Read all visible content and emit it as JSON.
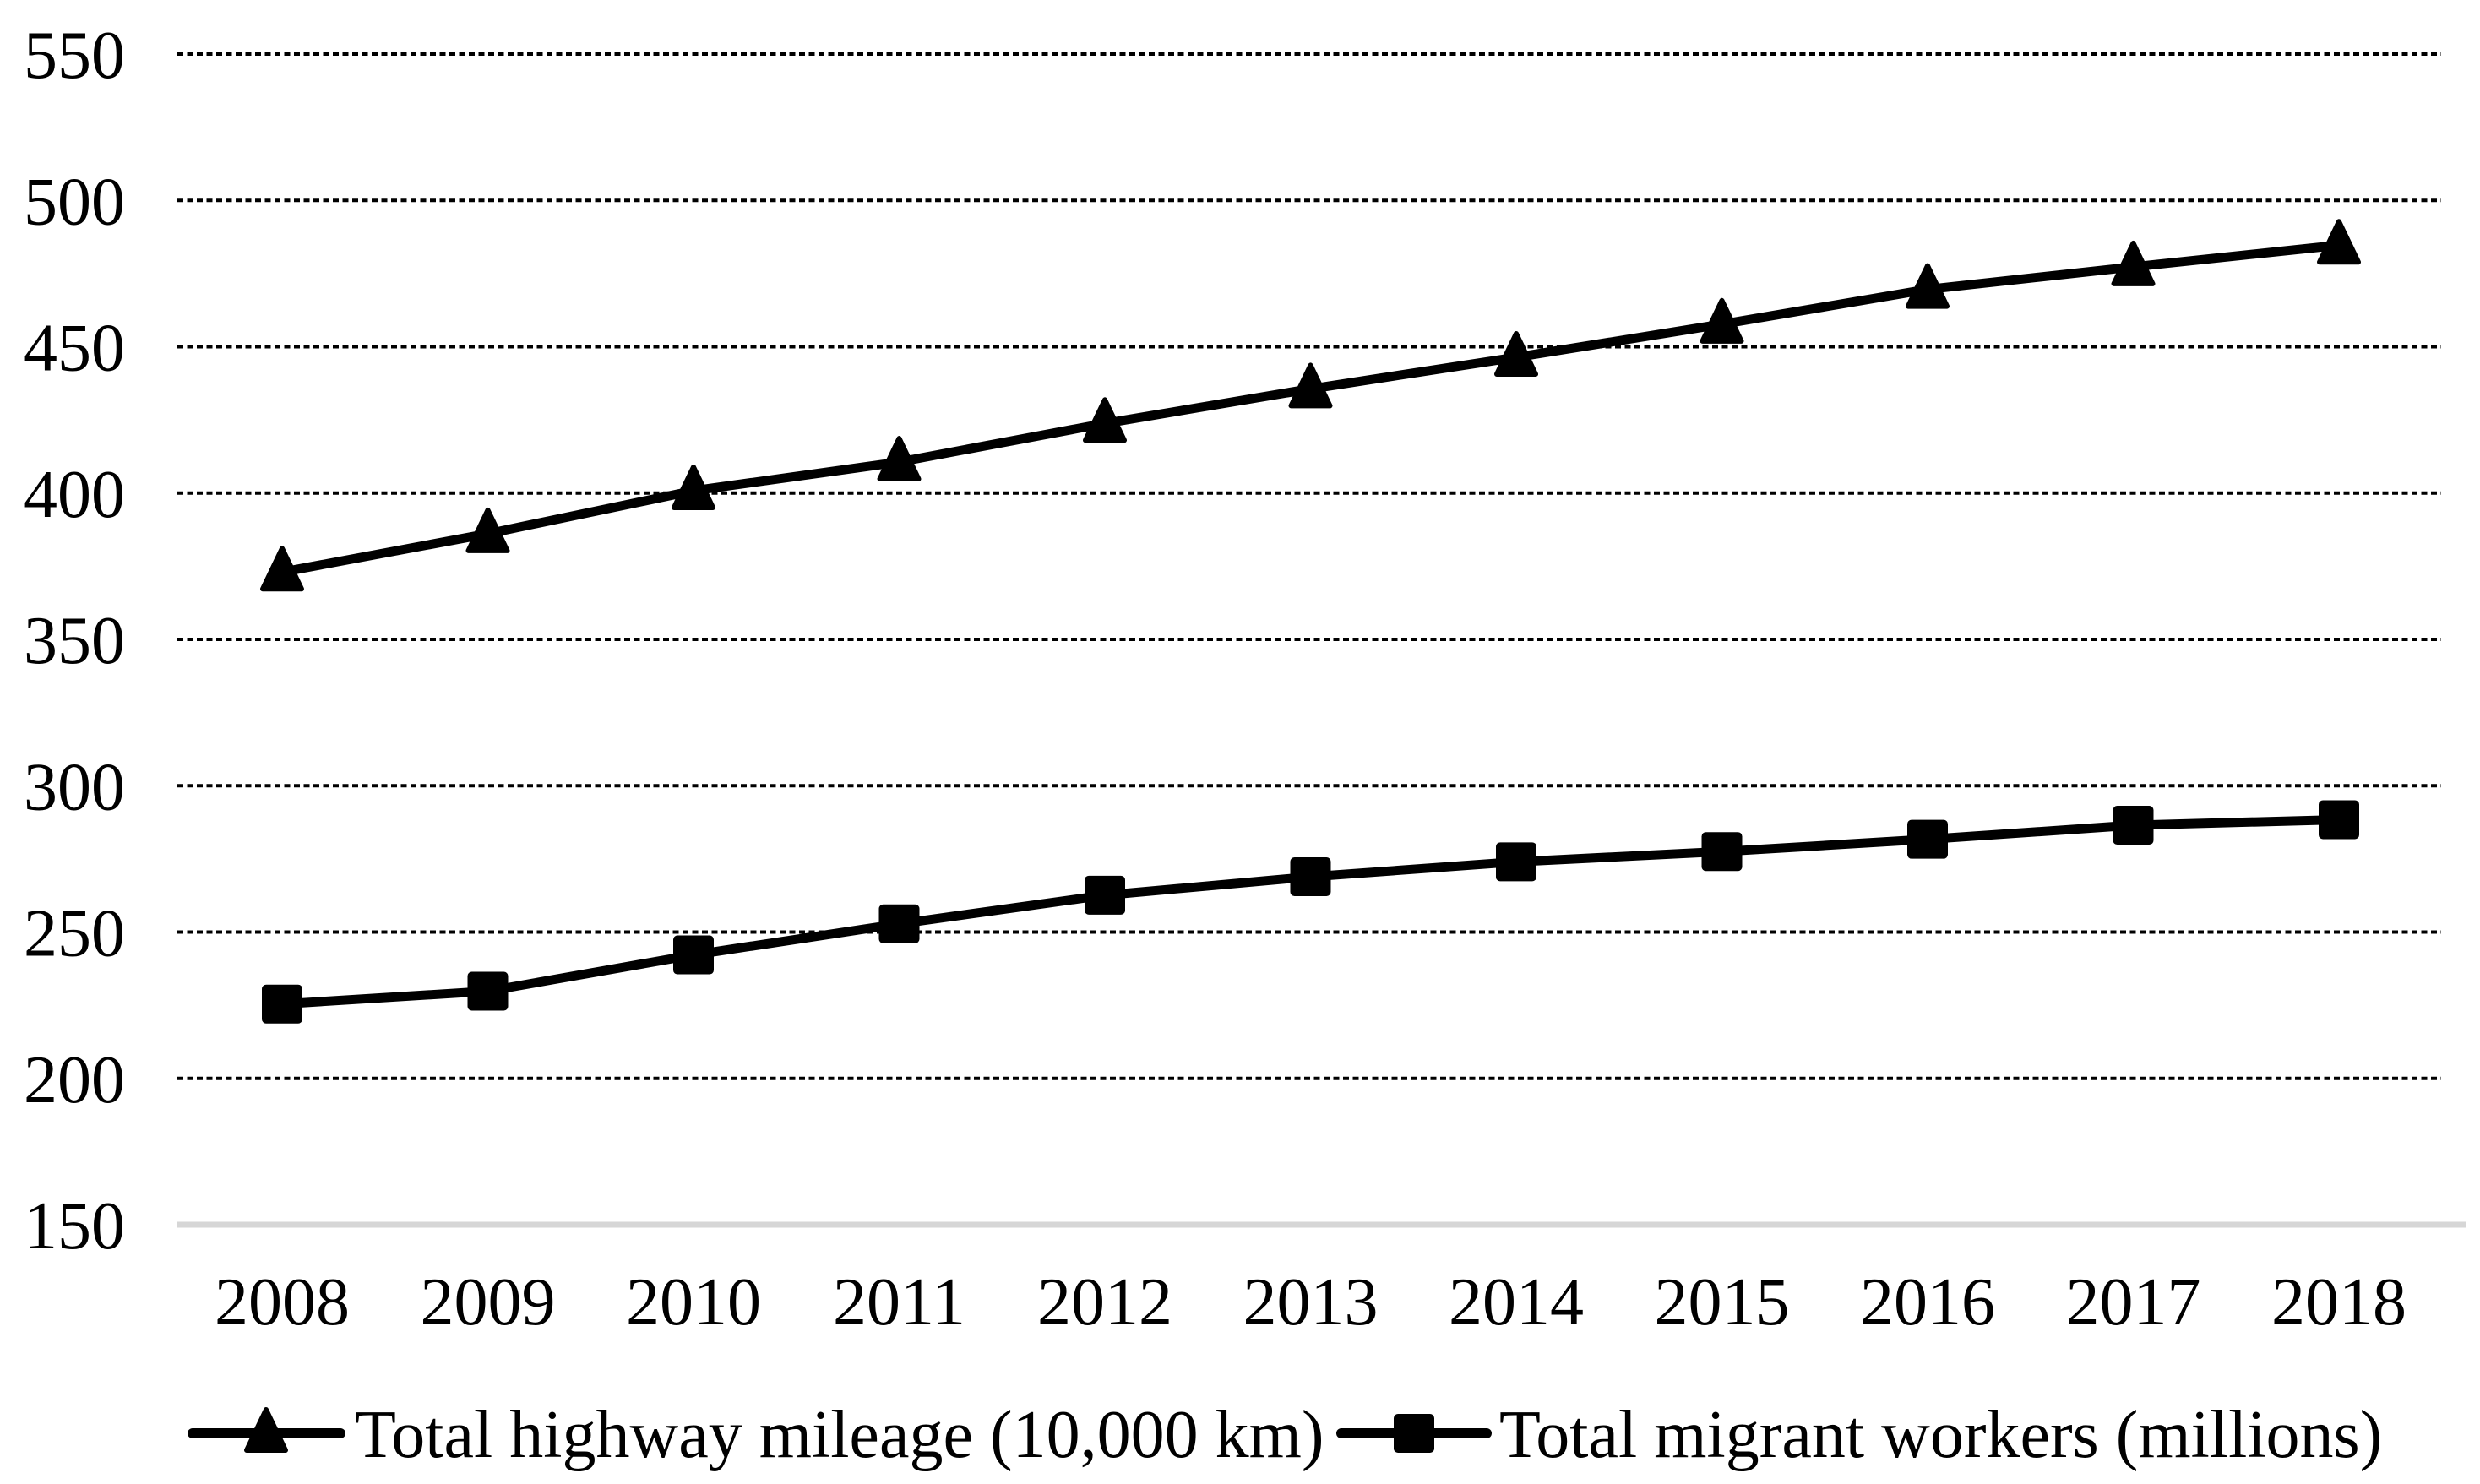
{
  "chart_data": {
    "type": "line",
    "title": "",
    "categories": [
      "2008",
      "2009",
      "2010",
      "2011",
      "2012",
      "2013",
      "2014",
      "2015",
      "2016",
      "2017",
      "2018"
    ],
    "series": [
      {
        "name": "Total highway mileage (10,000 km)",
        "marker": "triangle",
        "color": "#000000",
        "values": [
          373.0,
          386.1,
          400.8,
          410.6,
          423.8,
          435.6,
          446.4,
          457.7,
          469.6,
          477.3,
          484.7
        ]
      },
      {
        "name": "Total migrant workers (millions)",
        "marker": "square",
        "color": "#000000",
        "values": [
          225.4,
          229.8,
          242.2,
          252.8,
          262.6,
          268.9,
          274.0,
          277.5,
          281.7,
          286.5,
          288.4
        ]
      }
    ],
    "x_axis": {
      "tick_labels": [
        "2008",
        "2009",
        "2010",
        "2011",
        "2012",
        "2013",
        "2014",
        "2015",
        "2016",
        "2017",
        "2018"
      ]
    },
    "y_axis": {
      "min": 150,
      "max": 550,
      "step": 50,
      "tick_labels": [
        "150",
        "200",
        "250",
        "300",
        "350",
        "400",
        "450",
        "500",
        "550"
      ]
    },
    "grid": {
      "horizontal": "dashed",
      "vertical": "none"
    },
    "legend": {
      "position": "bottom",
      "items": [
        "Total highway mileage (10,000 km)",
        "Total migrant workers (millions)"
      ]
    },
    "colors": {
      "foreground": "#000000",
      "baseline_axis": "#d6d6d6",
      "background": "#ffffff"
    }
  }
}
